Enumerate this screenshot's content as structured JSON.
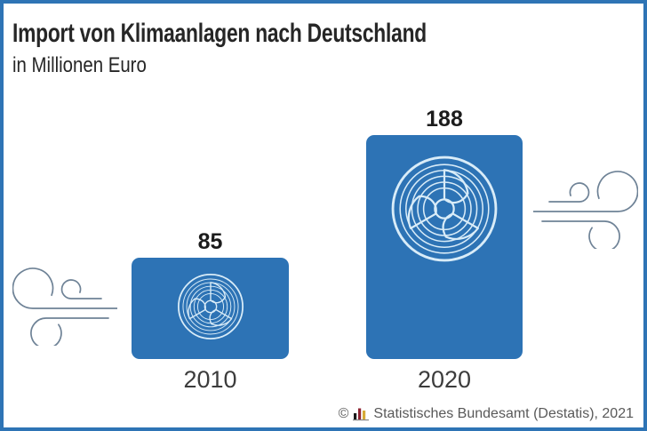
{
  "header": {
    "title": "Import von Klimaanlagen nach Deutschland",
    "subtitle": "in Millionen Euro"
  },
  "chart_data": {
    "type": "bar",
    "categories": [
      "2010",
      "2020"
    ],
    "values": [
      85,
      188
    ],
    "value_labels": [
      "85",
      "188"
    ],
    "title": "Import von Klimaanlagen nach Deutschland",
    "xlabel": "",
    "ylabel": "in Millionen Euro",
    "grid": false,
    "legend": false,
    "bar_color": "#2d73b5",
    "pictogram": "fan-icon inside each bar, wind-gust icons flanking the bars"
  },
  "bars": [
    {
      "year": "2010",
      "value": "85"
    },
    {
      "year": "2020",
      "value": "188"
    }
  ],
  "footer": {
    "copyright_symbol": "©",
    "source_text": "Statistisches Bundesamt (Destatis), 2021",
    "logo": "destatis-bar-chart-logo"
  },
  "icons": {
    "fan": "fan-icon",
    "wind": "wind-icon",
    "logo_colors": {
      "black": "#1a1a1a",
      "red": "#8f2432",
      "gold": "#d7ab37",
      "baseline": "#888888"
    }
  },
  "colors": {
    "frame": "#2e74b5",
    "bar": "#2d73b5",
    "fan_stroke": "#d9ecf8",
    "wind_stroke": "#6e8296",
    "title_text": "#262626",
    "value_text": "#1c1c1c",
    "label_text": "#3c3c3c",
    "footer_text": "#595959"
  }
}
